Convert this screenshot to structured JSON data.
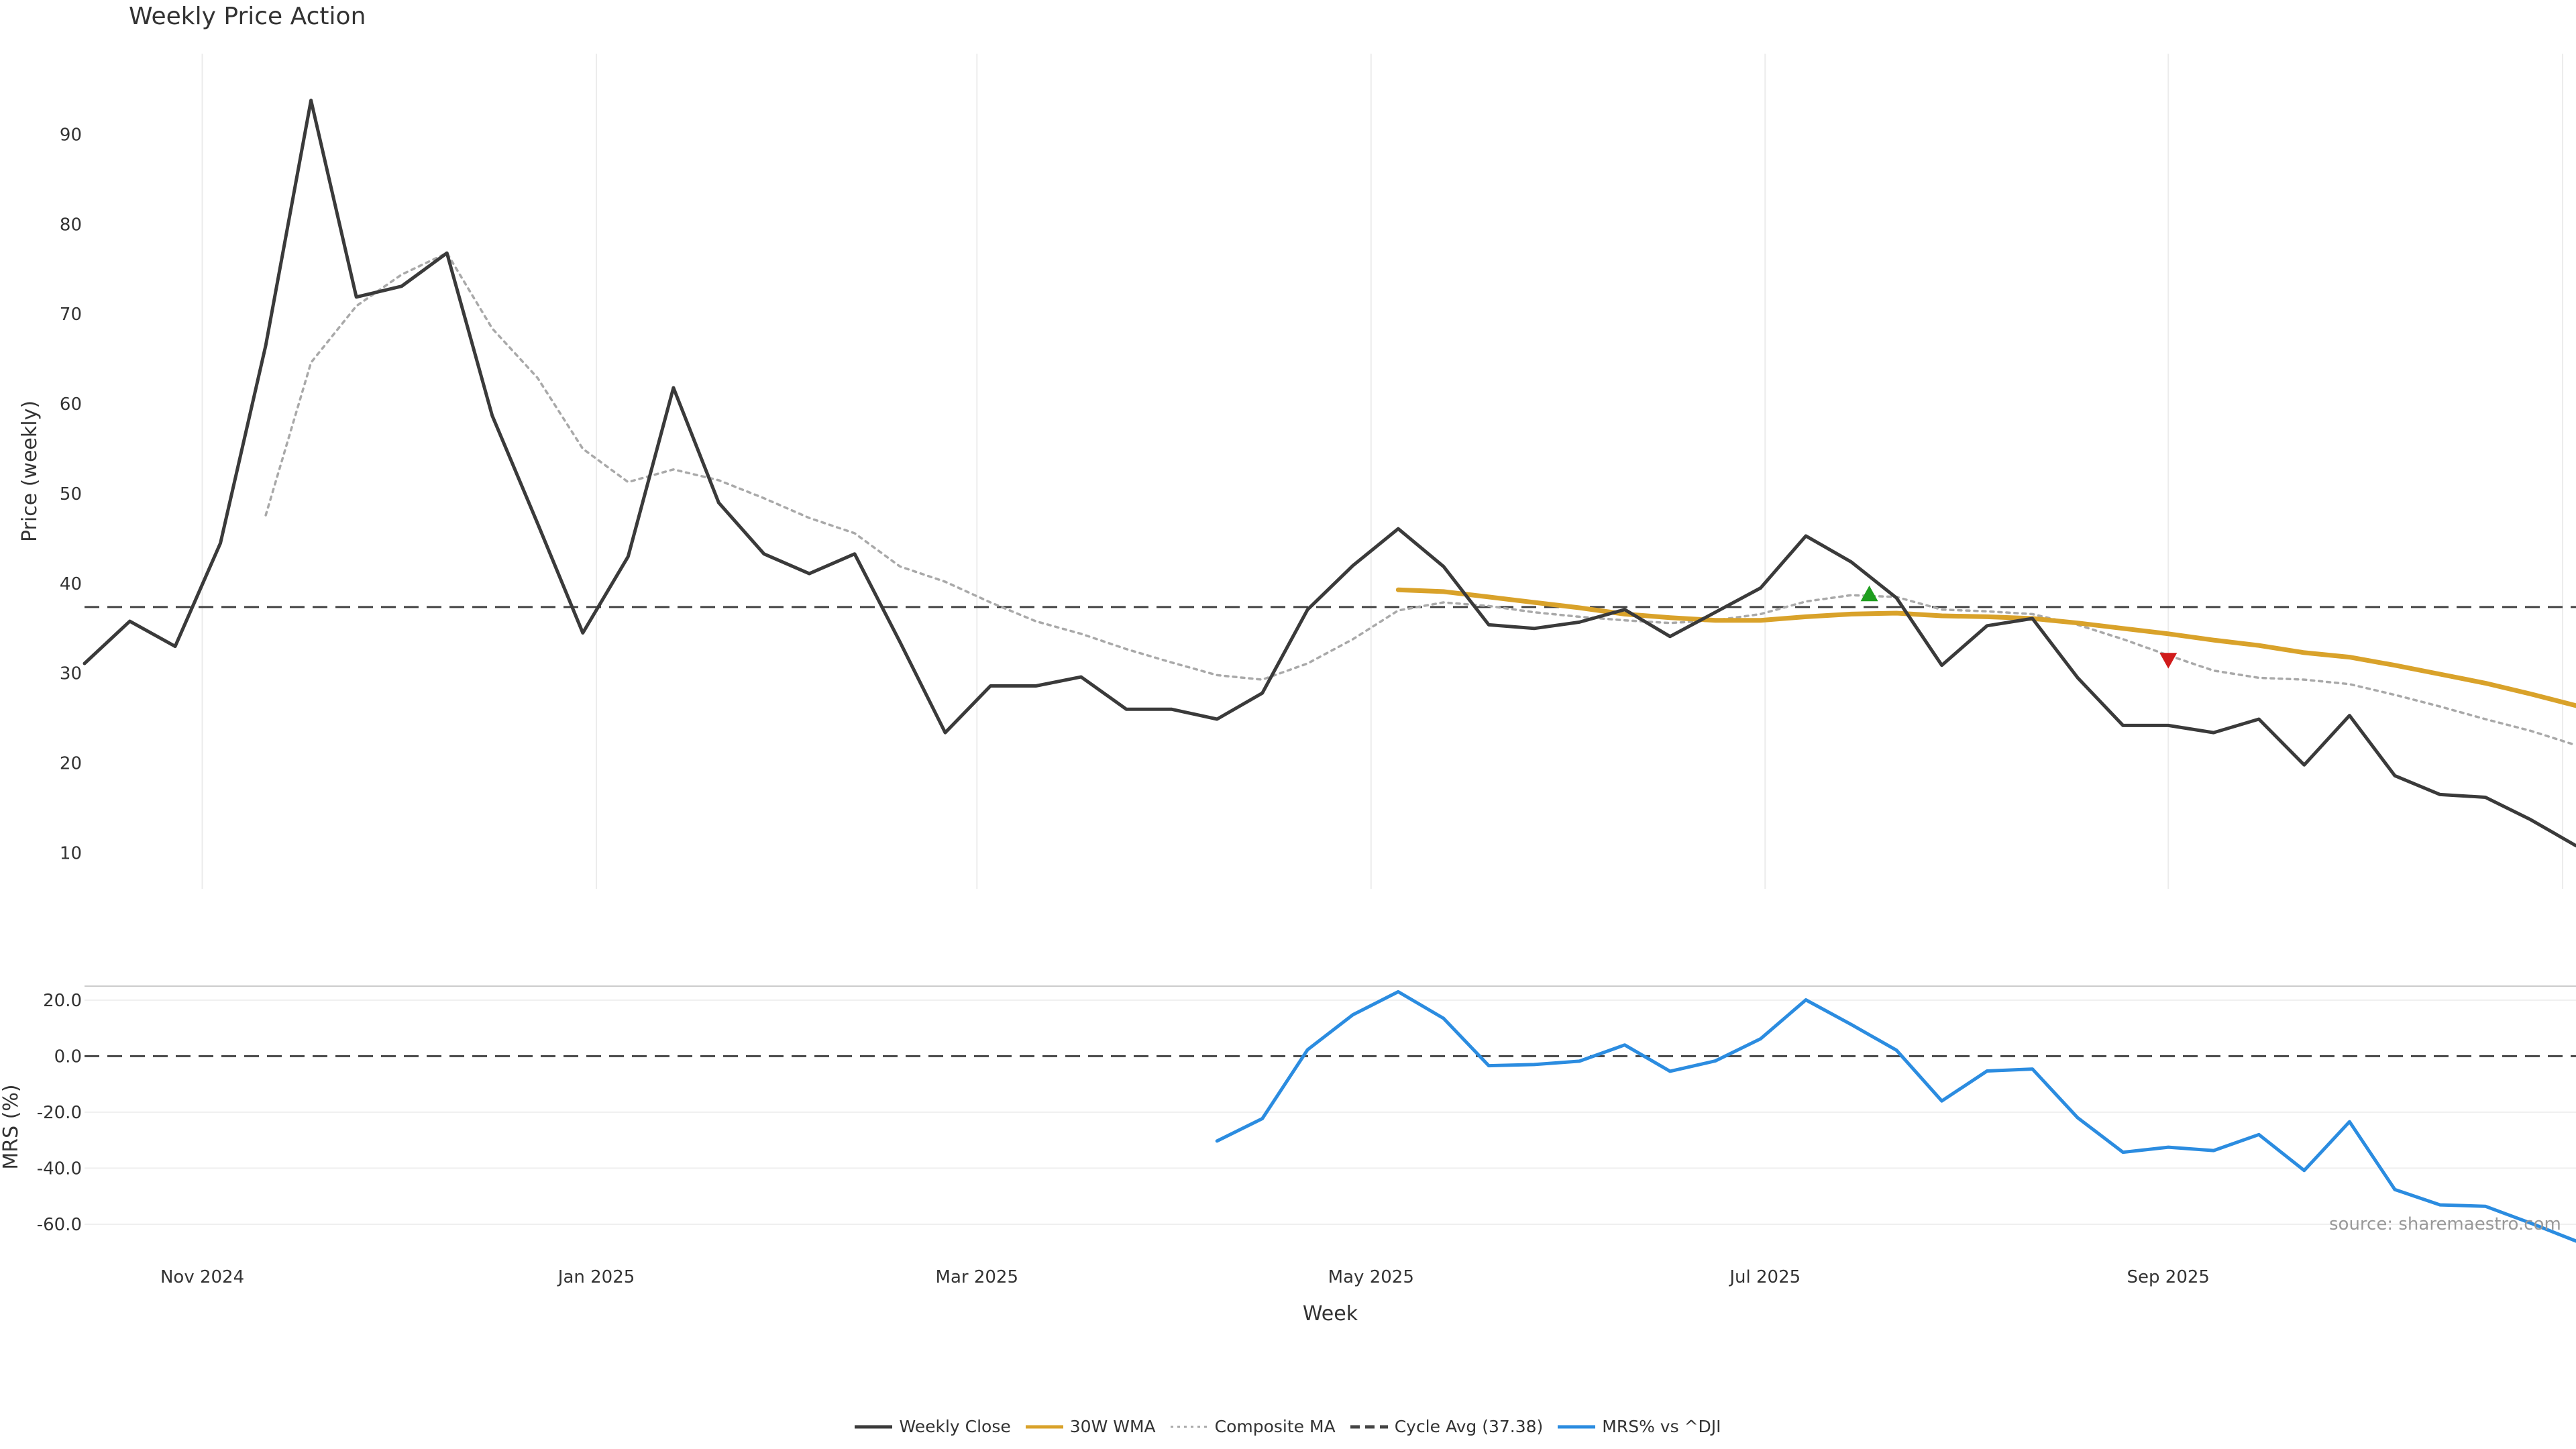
{
  "chart_data": [
    {
      "type": "line",
      "title": "Weekly Price Action",
      "ylabel": "Price (weekly)",
      "xlabel": "Week",
      "ylim": [
        6,
        99
      ],
      "yticks": [
        10,
        20,
        30,
        40,
        50,
        60,
        70,
        80,
        90
      ],
      "week_start": "2024-10-02",
      "week_range": [
        0,
        55
      ],
      "x_ticks": [
        {
          "label": "Nov 2024",
          "week": 2.6
        },
        {
          "label": "Jan 2025",
          "week": 11.3
        },
        {
          "label": "Mar 2025",
          "week": 19.7
        },
        {
          "label": "May 2025",
          "week": 28.4
        },
        {
          "label": "Jul 2025",
          "week": 37.1
        },
        {
          "label": "Sep 2025",
          "week": 46.0
        }
      ],
      "series": [
        {
          "name": "Weekly Close",
          "color": "#3a3a3a",
          "style": "solid",
          "start_week": 0,
          "values": [
            31.1,
            35.8,
            33.0,
            44.5,
            66.5,
            93.8,
            71.9,
            73.1,
            76.8,
            58.7,
            46.7,
            34.5,
            43.0,
            61.8,
            49.0,
            43.3,
            41.1,
            43.3,
            33.5,
            23.4,
            28.6,
            28.6,
            29.6,
            26.0,
            26.0,
            24.9,
            27.8,
            37.1,
            42.0,
            46.1,
            41.9,
            35.4,
            35.0,
            35.7,
            37.1,
            34.1,
            36.8,
            39.5,
            45.3,
            42.4,
            38.4,
            30.9,
            35.3,
            36.1,
            29.5,
            24.2,
            24.2,
            23.4,
            24.9,
            19.8,
            25.3,
            18.6,
            16.5,
            16.2,
            13.7,
            10.8
          ]
        },
        {
          "name": "30W WMA",
          "color": "#d9a22a",
          "style": "solid",
          "start_week": 29,
          "values": [
            39.3,
            39.1,
            38.5,
            37.9,
            37.3,
            36.6,
            36.2,
            35.9,
            35.9,
            36.3,
            36.6,
            36.7,
            36.4,
            36.3,
            36.1,
            35.6,
            35.0,
            34.4,
            33.7,
            33.1,
            32.3,
            31.8,
            30.9,
            29.9,
            28.9,
            27.7,
            26.4
          ]
        },
        {
          "name": "Composite MA",
          "color": "#a9a9a9",
          "style": "dotted",
          "start_week": 4,
          "values": [
            47.6,
            64.6,
            70.9,
            74.4,
            76.8,
            68.4,
            62.9,
            55.0,
            51.3,
            52.7,
            51.5,
            49.5,
            47.3,
            45.6,
            41.9,
            40.2,
            37.9,
            35.8,
            34.4,
            32.7,
            31.2,
            29.8,
            29.3,
            31.1,
            33.8,
            37.0,
            37.9,
            37.5,
            36.8,
            36.3,
            35.9,
            35.6,
            35.9,
            36.6,
            38.0,
            38.7,
            38.5,
            37.1,
            36.9,
            36.6,
            35.4,
            33.8,
            32.0,
            30.3,
            29.5,
            29.3,
            28.8,
            27.6,
            26.3,
            24.9,
            23.6,
            22.0
          ]
        },
        {
          "name": "Cycle Avg (37.38)",
          "color": "#444444",
          "style": "dashed",
          "constant": 37.38
        }
      ],
      "annotations": [
        {
          "type": "buy-signal",
          "marker": "up-triangle",
          "color": "#1f9e1f",
          "week": 39.4,
          "value": 38.8
        },
        {
          "type": "sell-signal",
          "marker": "down-triangle",
          "color": "#d01b1b",
          "week": 46.0,
          "value": 31.5
        }
      ]
    },
    {
      "type": "line",
      "title": "",
      "ylabel": "MRS (%)",
      "xlabel": "Week",
      "ylim": [
        -66,
        25
      ],
      "yticks": [
        20.0,
        0.0,
        -20.0,
        -40.0,
        -60.0
      ],
      "ytick_labels": [
        "20.0",
        "0.0",
        "-20.0",
        "-40.0",
        "-60.0"
      ],
      "series": [
        {
          "name": "MRS% vs ^DJI",
          "color": "#2b8ce0",
          "style": "solid",
          "start_week": 25,
          "values": [
            -30.3,
            -22.3,
            2.3,
            14.8,
            23.0,
            13.5,
            -3.4,
            -3.0,
            -1.8,
            4.0,
            -5.4,
            -1.7,
            6.2,
            20.1,
            11.3,
            2.1,
            -16.0,
            -5.3,
            -4.6,
            -22.0,
            -34.3,
            -32.5,
            -33.7,
            -28.0,
            -40.8,
            -23.4,
            -47.6,
            -53.1,
            -53.6,
            -59.6,
            -66.0
          ]
        },
        {
          "name": "zero-line",
          "color": "#444444",
          "style": "dashed",
          "constant": 0
        }
      ]
    }
  ],
  "page": {
    "title": "Weekly Price Action",
    "xlabel": "Week",
    "source": "source: sharemaestro.com"
  },
  "legend": [
    {
      "label": "Weekly Close",
      "color": "#3a3a3a",
      "style": "solid"
    },
    {
      "label": "30W WMA",
      "color": "#d9a22a",
      "style": "solid"
    },
    {
      "label": "Composite MA",
      "color": "#a9a9a9",
      "style": "dotted"
    },
    {
      "label": "Cycle Avg (37.38)",
      "color": "#444444",
      "style": "dashed"
    },
    {
      "label": "MRS% vs ^DJI",
      "color": "#2b8ce0",
      "style": "solid"
    }
  ]
}
